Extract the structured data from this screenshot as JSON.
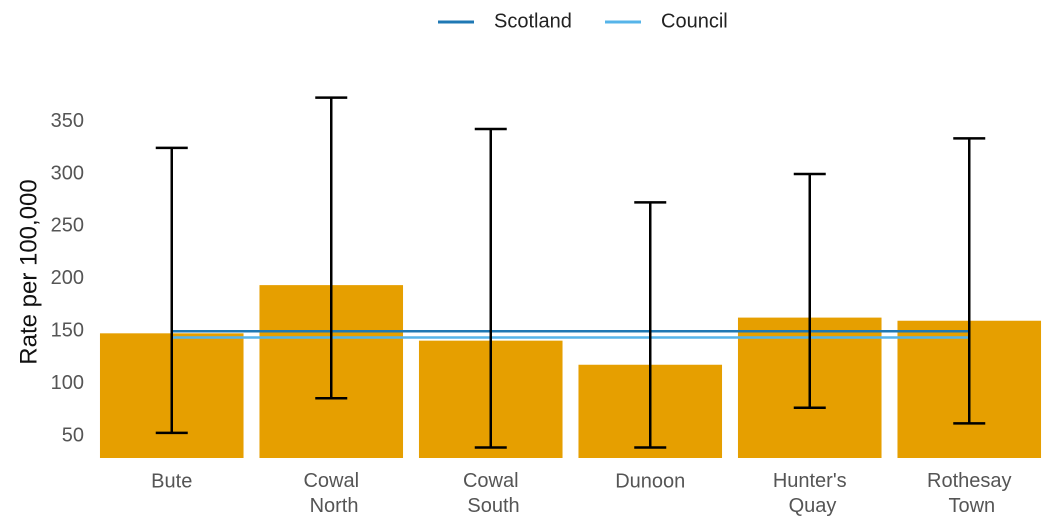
{
  "chart_data": {
    "type": "bar",
    "y_label": "Rate per 100,000",
    "categories": [
      "Bute",
      "Cowal North",
      "Cowal South",
      "Dunoon",
      "Hunter's Quay",
      "Rothesay Town"
    ],
    "values": [
      148,
      194,
      141,
      118,
      163,
      160
    ],
    "lower": [
      53,
      86,
      39,
      39,
      77,
      62
    ],
    "upper": [
      325,
      373,
      343,
      273,
      300,
      334
    ],
    "color": "#E69F00",
    "reference_lines": [
      {
        "name": "Scotland",
        "color": "#1F78B4",
        "value": 150
      },
      {
        "name": "Council",
        "color": "#56B4E9",
        "value": 144
      }
    ],
    "ylim": [
      29,
      385
    ],
    "yticks": [
      50,
      100,
      150,
      200,
      250,
      300,
      350
    ],
    "grid": false,
    "legend": "top"
  }
}
